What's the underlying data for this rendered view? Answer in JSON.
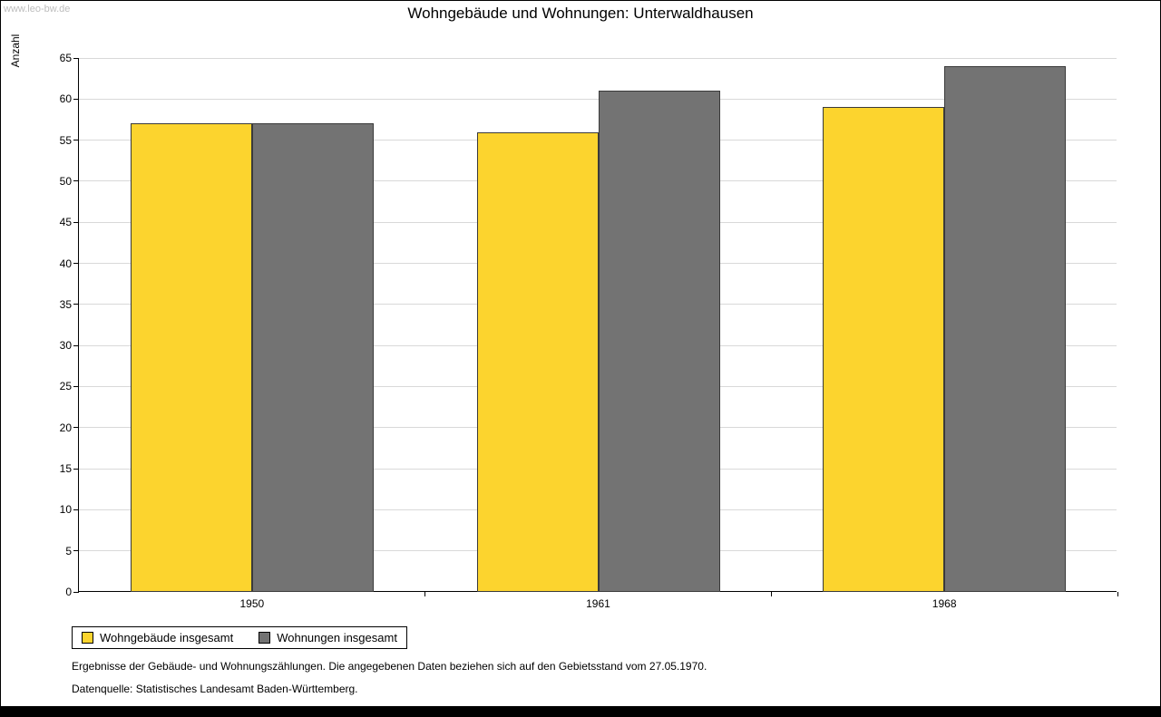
{
  "watermark": "www.leo-bw.de",
  "title": "Wohngebäude und Wohnungen: Unterwaldhausen",
  "y_axis_label": "Anzahl",
  "footnotes": {
    "line1": "Ergebnisse der Gebäude- und Wohnungszählungen. Die angegebenen Daten beziehen sich auf den Gebietsstand vom 27.05.1970.",
    "line2": "Datenquelle: Statistisches Landesamt Baden-Württemberg."
  },
  "chart_data": {
    "type": "bar",
    "categories": [
      "1950",
      "1961",
      "1968"
    ],
    "series": [
      {
        "name": "Wohngebäude insgesamt",
        "color": "#fcd42e",
        "values": [
          57,
          56,
          59
        ]
      },
      {
        "name": "Wohnungen insgesamt",
        "color": "#737373",
        "values": [
          57,
          61,
          64
        ]
      }
    ],
    "title": "Wohngebäude und Wohnungen: Unterwaldhausen",
    "xlabel": "",
    "ylabel": "Anzahl",
    "ylim": [
      0,
      65
    ],
    "ytick_step": 5,
    "grid": true,
    "legend_position": "bottom-left"
  }
}
